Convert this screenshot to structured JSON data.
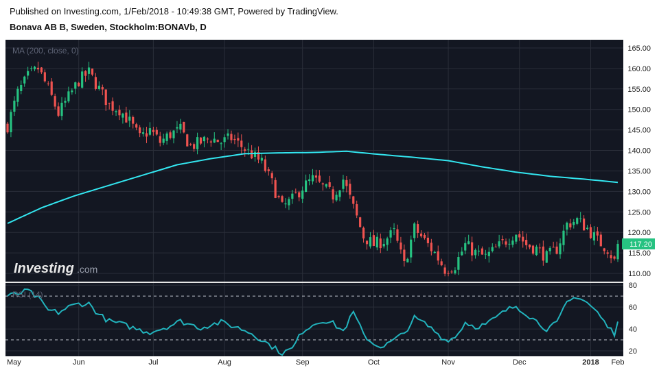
{
  "header": {
    "published": "Published on Investing.com, 1/Feb/2018 - 10:49:38 GMT, Powered by TradingView.",
    "symbol": "Bonava AB B, Sweden, Stockholm:BONAVb, D"
  },
  "colors": {
    "background": "#131722",
    "up": "#26c281",
    "down": "#ef5350",
    "ma": "#33e6f0",
    "rsi": "#22b3bd",
    "last_price_bg": "#26c281"
  },
  "logo": {
    "brand": "Investing",
    "suffix": ".com"
  },
  "chart_data": [
    {
      "type": "candlestick",
      "indicator_label": "MA (200, close, 0)",
      "ylim": [
        108,
        167
      ],
      "y_ticks": [
        "165.00",
        "160.00",
        "155.00",
        "150.00",
        "145.00",
        "140.00",
        "135.00",
        "130.00",
        "125.00",
        "120.00",
        "115.00",
        "110.00"
      ],
      "last_price": "117.20",
      "x_ticks": [
        "May",
        "Jun",
        "Jul",
        "Aug",
        "Sep",
        "Oct",
        "Nov",
        "Dec",
        "2018",
        "Feb"
      ],
      "anchors": [
        [
          0,
          146
        ],
        [
          3,
          154
        ],
        [
          6,
          158
        ],
        [
          9,
          160
        ],
        [
          12,
          155
        ],
        [
          15,
          149
        ],
        [
          18,
          153
        ],
        [
          21,
          157
        ],
        [
          24,
          159
        ],
        [
          27,
          155
        ],
        [
          30,
          151
        ],
        [
          33,
          150
        ],
        [
          36,
          147
        ],
        [
          39,
          143
        ],
        [
          42,
          145
        ],
        [
          45,
          142
        ],
        [
          48,
          144
        ],
        [
          51,
          145
        ],
        [
          54,
          141
        ],
        [
          57,
          142
        ],
        [
          60,
          143
        ],
        [
          63,
          142
        ],
        [
          66,
          143
        ],
        [
          69,
          141
        ],
        [
          72,
          139
        ],
        [
          75,
          137
        ],
        [
          78,
          132
        ],
        [
          81,
          126
        ],
        [
          84,
          128
        ],
        [
          87,
          131
        ],
        [
          90,
          133
        ],
        [
          93,
          131
        ],
        [
          96,
          129
        ],
        [
          99,
          133
        ],
        [
          102,
          126
        ],
        [
          105,
          119
        ],
        [
          108,
          117
        ],
        [
          111,
          118
        ],
        [
          114,
          120
        ],
        [
          117,
          112
        ],
        [
          120,
          121
        ],
        [
          123,
          118
        ],
        [
          126,
          115
        ],
        [
          129,
          111
        ],
        [
          132,
          112
        ],
        [
          135,
          117
        ],
        [
          138,
          115
        ],
        [
          141,
          114
        ],
        [
          144,
          116
        ],
        [
          147,
          118
        ],
        [
          150,
          120
        ],
        [
          153,
          117
        ],
        [
          156,
          116
        ],
        [
          159,
          114
        ],
        [
          162,
          116
        ],
        [
          165,
          122
        ],
        [
          168,
          123
        ],
        [
          171,
          121
        ],
        [
          174,
          118
        ],
        [
          177,
          116
        ],
        [
          179,
          113
        ],
        [
          180,
          117.2
        ]
      ],
      "ma_anchors": [
        [
          0,
          122.2
        ],
        [
          10,
          126
        ],
        [
          20,
          129
        ],
        [
          30,
          131.5
        ],
        [
          40,
          134
        ],
        [
          50,
          136.5
        ],
        [
          60,
          138
        ],
        [
          70,
          139.2
        ],
        [
          80,
          139.4
        ],
        [
          90,
          139.5
        ],
        [
          100,
          139.8
        ],
        [
          110,
          139.0
        ],
        [
          120,
          138.3
        ],
        [
          130,
          137.5
        ],
        [
          140,
          136.0
        ],
        [
          150,
          134.7
        ],
        [
          160,
          133.7
        ],
        [
          170,
          133.0
        ],
        [
          180,
          132.2
        ]
      ]
    },
    {
      "type": "line",
      "indicator_label": "RSI (14)",
      "ylim": [
        15,
        82
      ],
      "y_ticks": [
        "80",
        "60",
        "40",
        "20"
      ],
      "overbought": 70,
      "oversold": 30,
      "anchors": [
        [
          0,
          70
        ],
        [
          3,
          72
        ],
        [
          6,
          75
        ],
        [
          9,
          68
        ],
        [
          12,
          57
        ],
        [
          15,
          55
        ],
        [
          18,
          60
        ],
        [
          21,
          63
        ],
        [
          24,
          63
        ],
        [
          27,
          53
        ],
        [
          30,
          47
        ],
        [
          33,
          45
        ],
        [
          36,
          42
        ],
        [
          39,
          39
        ],
        [
          42,
          37
        ],
        [
          45,
          40
        ],
        [
          48,
          43
        ],
        [
          51,
          47
        ],
        [
          54,
          44
        ],
        [
          57,
          41
        ],
        [
          60,
          44
        ],
        [
          63,
          46
        ],
        [
          66,
          43
        ],
        [
          69,
          40
        ],
        [
          72,
          36
        ],
        [
          75,
          30
        ],
        [
          78,
          24
        ],
        [
          81,
          18
        ],
        [
          84,
          22
        ],
        [
          87,
          38
        ],
        [
          90,
          44
        ],
        [
          93,
          48
        ],
        [
          96,
          45
        ],
        [
          99,
          38
        ],
        [
          102,
          55
        ],
        [
          105,
          35
        ],
        [
          108,
          26
        ],
        [
          111,
          24
        ],
        [
          114,
          30
        ],
        [
          117,
          36
        ],
        [
          120,
          50
        ],
        [
          123,
          45
        ],
        [
          126,
          38
        ],
        [
          129,
          30
        ],
        [
          132,
          32
        ],
        [
          135,
          46
        ],
        [
          138,
          42
        ],
        [
          141,
          44
        ],
        [
          144,
          50
        ],
        [
          147,
          57
        ],
        [
          150,
          61
        ],
        [
          153,
          54
        ],
        [
          156,
          47
        ],
        [
          159,
          40
        ],
        [
          162,
          45
        ],
        [
          165,
          64
        ],
        [
          168,
          70
        ],
        [
          171,
          64
        ],
        [
          174,
          55
        ],
        [
          177,
          42
        ],
        [
          179,
          36
        ],
        [
          180,
          49
        ]
      ]
    }
  ]
}
